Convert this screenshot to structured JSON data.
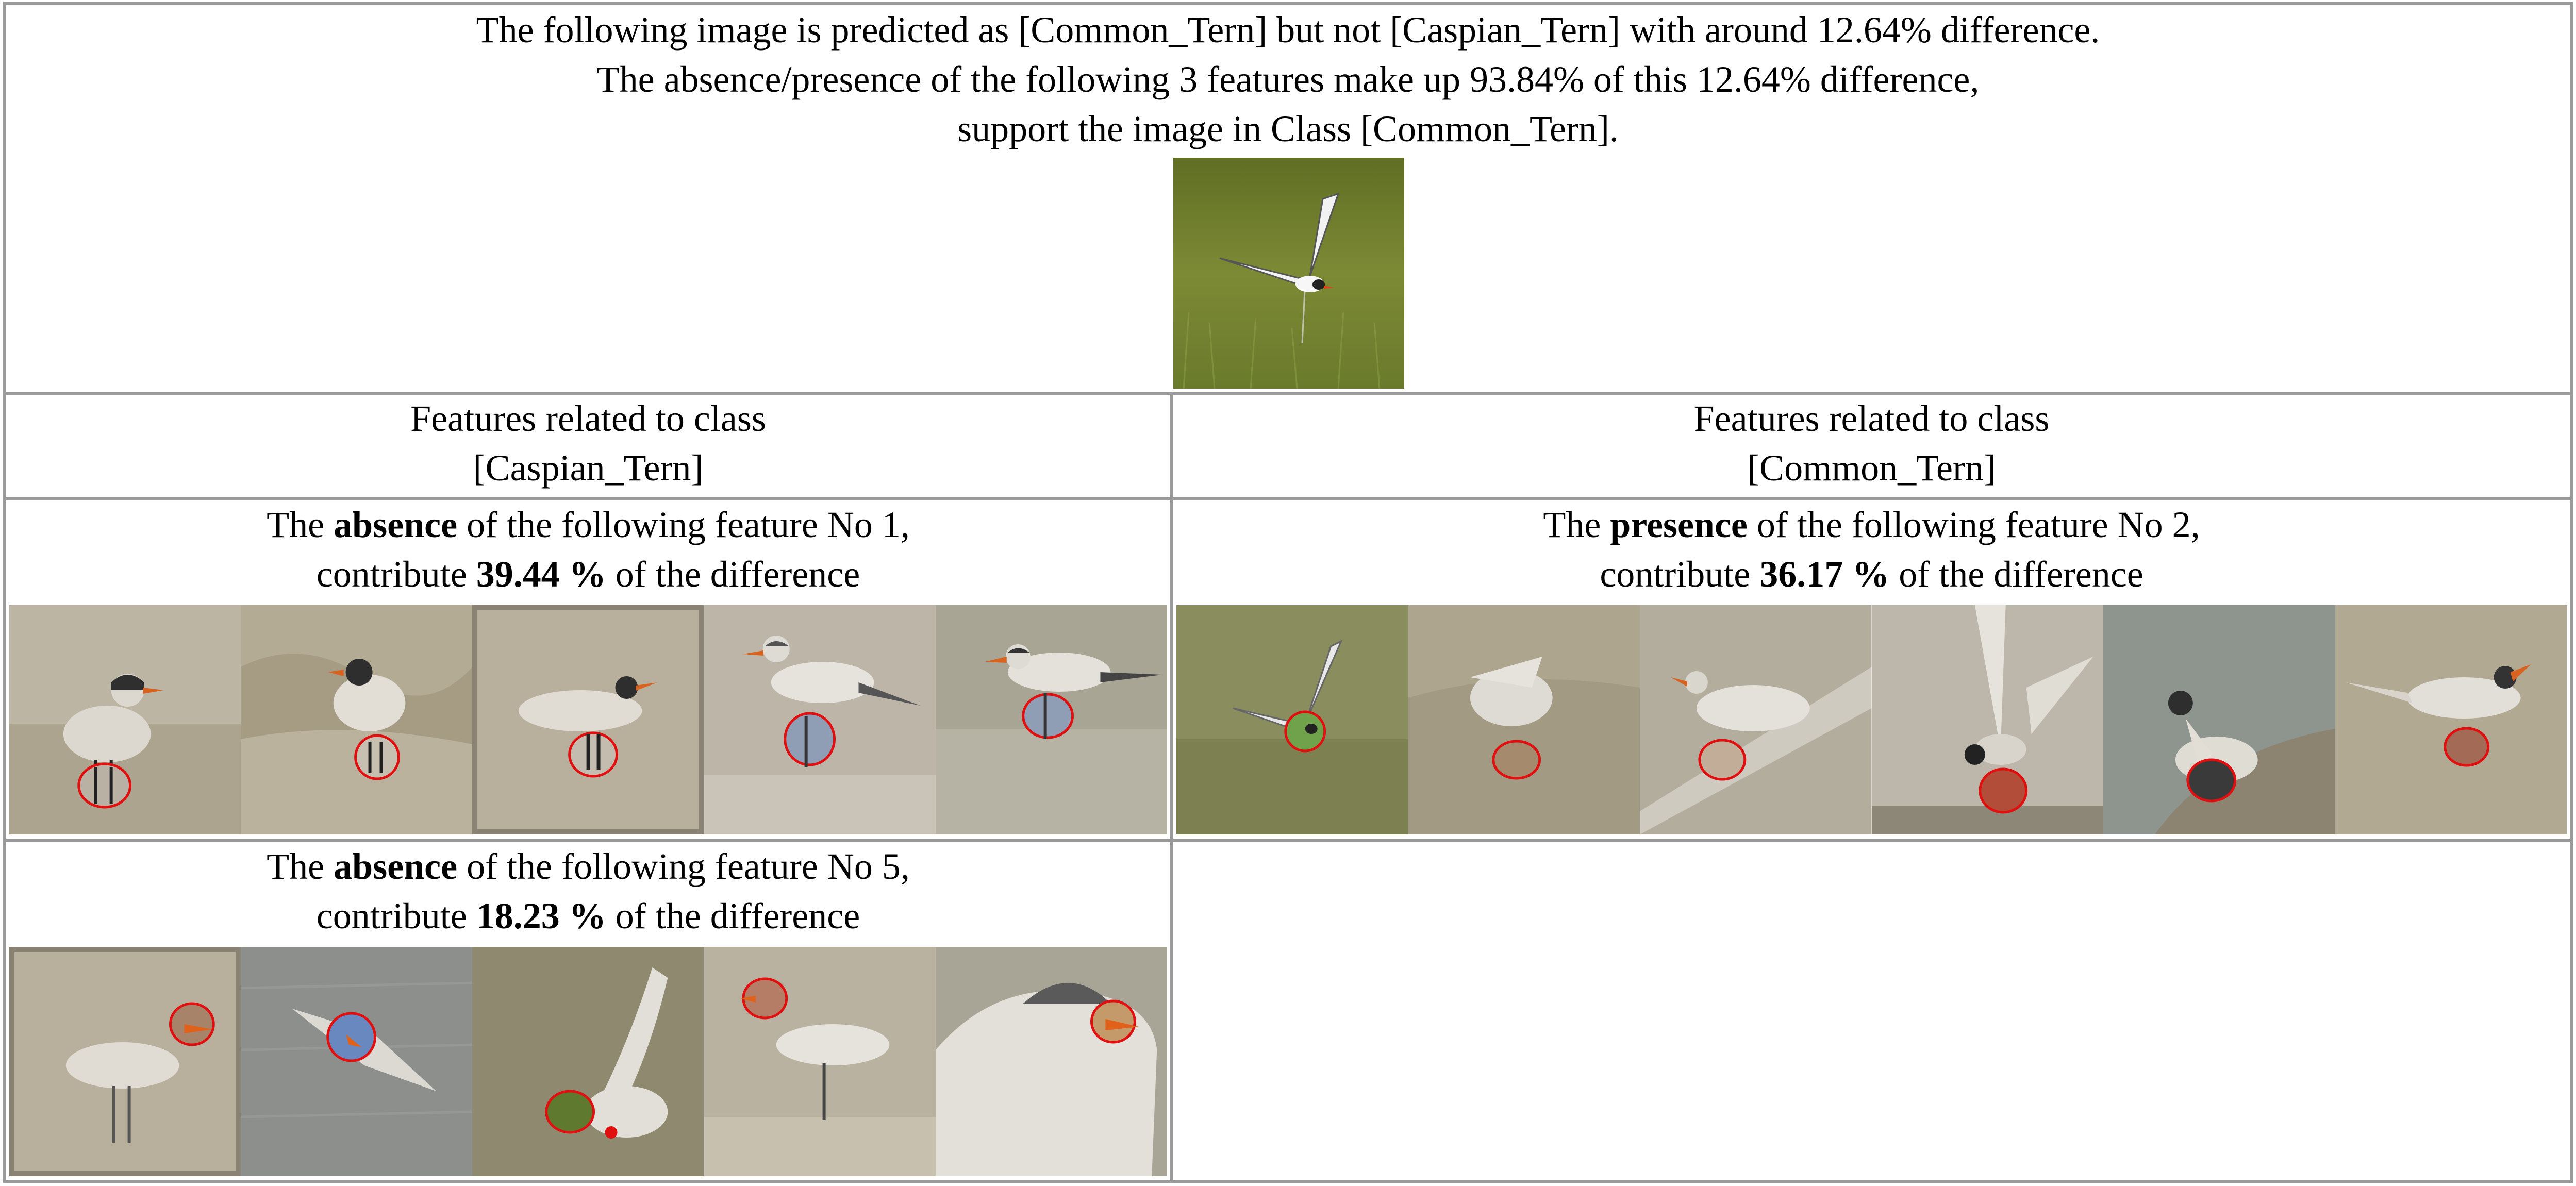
{
  "header": {
    "line1": "The following image is predicted as [Common_Tern] but not [Caspian_Tern] with around 12.64% difference.",
    "line2": "The absence/presence of the following 3 features make up 93.84% of this 12.64% difference,",
    "line3": "support the image in Class [Common_Tern]."
  },
  "columns": {
    "left": {
      "line1": "Features related to class",
      "line2": "[Caspian_Tern]"
    },
    "right": {
      "line1": "Features related to class",
      "line2": "[Common_Tern]"
    }
  },
  "features": [
    {
      "prefix": "The ",
      "keyword": "absence",
      "suffix": " of the following feature No 1,",
      "contrib_prefix": "contribute ",
      "percent": "39.44 %",
      "contrib_suffix": " of the difference"
    },
    {
      "prefix": "The ",
      "keyword": "presence",
      "suffix": " of the following feature No 2,",
      "contrib_prefix": "contribute ",
      "percent": "36.17 %",
      "contrib_suffix": " of the difference"
    },
    {
      "prefix": "The ",
      "keyword": "absence",
      "suffix": " of the following feature No 5,",
      "contrib_prefix": "contribute ",
      "percent": "18.23 %",
      "contrib_suffix": " of the difference"
    }
  ],
  "colors": {
    "grid": "#9a9a9a",
    "highlight": "#e01010",
    "grass": "#6f7d2a",
    "sand_tint": "#b5ab93"
  }
}
